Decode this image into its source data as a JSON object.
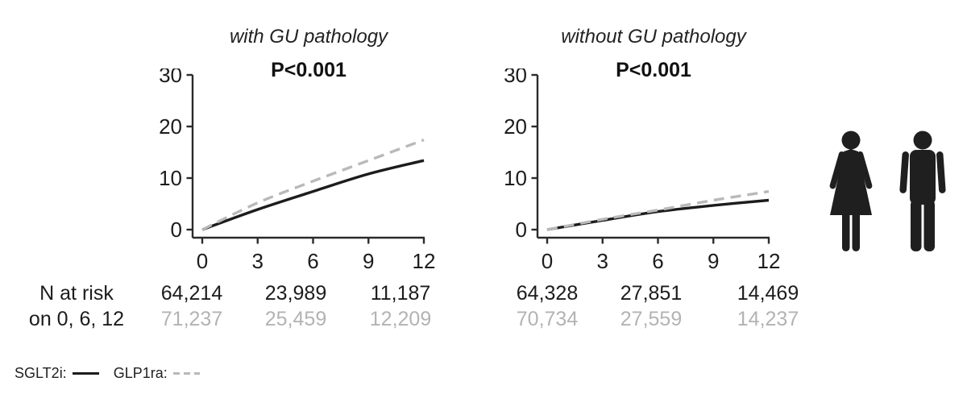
{
  "chart_data": [
    {
      "type": "line",
      "title": "with GU pathology",
      "annotation": "P<0.001",
      "x": [
        0,
        3,
        6,
        9,
        12
      ],
      "xlim": [
        0,
        12
      ],
      "ylim": [
        0,
        30
      ],
      "xticks": [
        "0",
        "3",
        "6",
        "9",
        "12"
      ],
      "yticks": [
        "0",
        "10",
        "20",
        "30"
      ],
      "grid": "off",
      "series": [
        {
          "name": "SGLT2i",
          "line": "solid",
          "color": "#1c1c1c",
          "values": [
            0,
            3.9,
            7.4,
            10.8,
            13.4
          ]
        },
        {
          "name": "GLP1ra",
          "line": "dashed",
          "color": "#b9b9b9",
          "values": [
            0,
            5.2,
            9.4,
            13.4,
            17.4
          ]
        }
      ],
      "n_at_risk": {
        "times": [
          0,
          6,
          12
        ],
        "SGLT2i": [
          "64,214",
          "23,989",
          "11,187"
        ],
        "GLP1ra": [
          "71,237",
          "25,459",
          "12,209"
        ]
      }
    },
    {
      "type": "line",
      "title": "without GU pathology",
      "annotation": "P<0.001",
      "x": [
        0,
        3,
        6,
        9,
        12
      ],
      "xlim": [
        0,
        12
      ],
      "ylim": [
        0,
        30
      ],
      "xticks": [
        "0",
        "3",
        "6",
        "9",
        "12"
      ],
      "yticks": [
        "0",
        "10",
        "20",
        "30"
      ],
      "grid": "off",
      "series": [
        {
          "name": "SGLT2i",
          "line": "solid",
          "color": "#1c1c1c",
          "values": [
            0,
            1.8,
            3.5,
            4.7,
            5.7
          ]
        },
        {
          "name": "GLP1ra",
          "line": "dashed",
          "color": "#b9b9b9",
          "values": [
            0,
            2.0,
            3.8,
            5.7,
            7.4
          ]
        }
      ],
      "n_at_risk": {
        "times": [
          0,
          6,
          12
        ],
        "SGLT2i": [
          "64,328",
          "27,851",
          "14,469"
        ],
        "GLP1ra": [
          "70,734",
          "27,559",
          "14,237"
        ]
      }
    }
  ],
  "risk_table": {
    "label_line1": "N at risk",
    "label_line2": "on 0, 6, 12"
  },
  "legend": {
    "position": "bottom-left",
    "items": [
      {
        "label": "SGLT2i:",
        "line": "solid",
        "color": "#1c1c1c"
      },
      {
        "label": "GLP1ra:",
        "line": "dashed",
        "color": "#b9b9b9"
      }
    ]
  },
  "icons": {
    "names": [
      "female-figure-icon",
      "male-figure-icon"
    ],
    "color": "#1f1f1f"
  }
}
